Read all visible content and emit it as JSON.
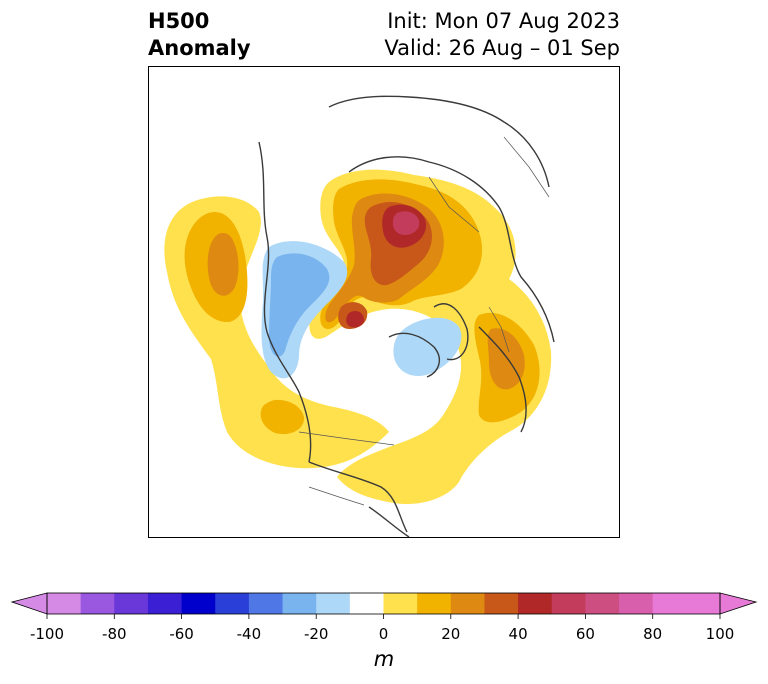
{
  "title": {
    "left_line1": "H500",
    "left_line2": "Anomaly",
    "right_line1": "Init: Mon 07 Aug 2023",
    "right_line2": "Valid: 26 Aug – 01 Sep"
  },
  "colorbar": {
    "units": "m",
    "ticks": [
      "-100",
      "-80",
      "-60",
      "-40",
      "-20",
      "0",
      "20",
      "40",
      "60",
      "80",
      "100"
    ],
    "tick_values": [
      -100,
      -80,
      -60,
      -40,
      -20,
      0,
      20,
      40,
      60,
      80,
      100
    ],
    "colors": [
      "#d58ae6",
      "#9a57e0",
      "#6a37d8",
      "#3a1fd4",
      "#0000cc",
      "#2a3fd8",
      "#4f78e6",
      "#7ab4ef",
      "#aed8f7",
      "#ffffff",
      "#ffe14d",
      "#f2b200",
      "#de8a12",
      "#c8581a",
      "#b02828",
      "#c33c5c",
      "#cd4f82",
      "#d85fac",
      "#e77ad6",
      "#e77ad6"
    ],
    "extend": "both"
  },
  "colors": {
    "coastline": "#3a3a3a",
    "frame": "#000000"
  }
}
